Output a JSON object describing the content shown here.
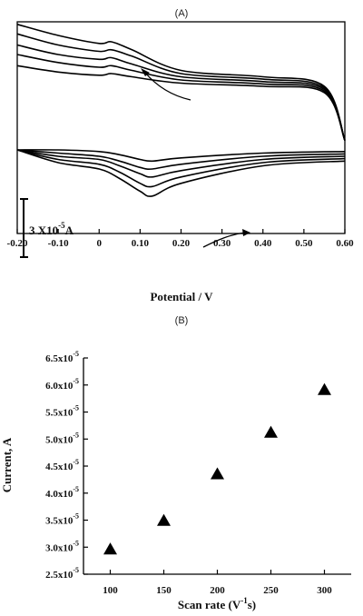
{
  "chart_data": [
    {
      "panel": "(A)",
      "type": "line",
      "xlabel": "Potential / V",
      "ylabel": "",
      "xlim": [
        -0.2,
        0.6
      ],
      "x_ticks": [
        "-0.20",
        "-0.10",
        "0",
        "0.10",
        "0.20",
        "0.30",
        "0.40",
        "0.50",
        "0.60"
      ],
      "grid": false,
      "scale_bar": {
        "label_main": "3 X10",
        "label_exp": "-5",
        "label_unit": "A",
        "value_A": 3e-05
      },
      "annotations": [
        "sweep arrow (anodic branch, leftward)",
        "sweep arrow (cathodic branch, rightward)"
      ],
      "series": [
        {
          "values_unit": "1e-5 A (relative)",
          "upper": [
            {
              "x": -0.2,
              "y": 7.9
            },
            {
              "x": -0.1,
              "y": 7.2
            },
            {
              "x": 0.0,
              "y": 6.7
            },
            {
              "x": 0.03,
              "y": 6.8
            },
            {
              "x": 0.08,
              "y": 6.3
            },
            {
              "x": 0.2,
              "y": 5.0
            },
            {
              "x": 0.4,
              "y": 4.6
            },
            {
              "x": 0.55,
              "y": 4.0
            },
            {
              "x": 0.6,
              "y": 0.6
            }
          ],
          "lower": [
            {
              "x": -0.2,
              "y": 0.0
            },
            {
              "x": -0.1,
              "y": -0.8
            },
            {
              "x": 0.0,
              "y": -1.2
            },
            {
              "x": 0.05,
              "y": -1.8
            },
            {
              "x": 0.1,
              "y": -2.6
            },
            {
              "x": 0.13,
              "y": -2.9
            },
            {
              "x": 0.2,
              "y": -2.1
            },
            {
              "x": 0.4,
              "y": -1.0
            },
            {
              "x": 0.6,
              "y": -0.7
            }
          ]
        },
        {
          "upper": [
            {
              "x": -0.2,
              "y": 7.3
            },
            {
              "x": -0.1,
              "y": 6.6
            },
            {
              "x": 0.0,
              "y": 6.2
            },
            {
              "x": 0.03,
              "y": 6.3
            },
            {
              "x": 0.08,
              "y": 5.9
            },
            {
              "x": 0.2,
              "y": 4.8
            },
            {
              "x": 0.4,
              "y": 4.45
            },
            {
              "x": 0.55,
              "y": 3.9
            },
            {
              "x": 0.6,
              "y": 0.6
            }
          ],
          "lower": [
            {
              "x": -0.2,
              "y": 0.0
            },
            {
              "x": -0.1,
              "y": -0.6
            },
            {
              "x": 0.0,
              "y": -0.9
            },
            {
              "x": 0.05,
              "y": -1.4
            },
            {
              "x": 0.1,
              "y": -2.1
            },
            {
              "x": 0.13,
              "y": -2.3
            },
            {
              "x": 0.2,
              "y": -1.7
            },
            {
              "x": 0.4,
              "y": -0.8
            },
            {
              "x": 0.6,
              "y": -0.55
            }
          ]
        },
        {
          "upper": [
            {
              "x": -0.2,
              "y": 6.6
            },
            {
              "x": -0.1,
              "y": 6.0
            },
            {
              "x": 0.0,
              "y": 5.7
            },
            {
              "x": 0.03,
              "y": 5.8
            },
            {
              "x": 0.08,
              "y": 5.4
            },
            {
              "x": 0.2,
              "y": 4.6
            },
            {
              "x": 0.4,
              "y": 4.3
            },
            {
              "x": 0.55,
              "y": 3.8
            },
            {
              "x": 0.6,
              "y": 0.6
            }
          ],
          "lower": [
            {
              "x": -0.2,
              "y": 0.0
            },
            {
              "x": -0.1,
              "y": -0.4
            },
            {
              "x": 0.0,
              "y": -0.6
            },
            {
              "x": 0.05,
              "y": -1.0
            },
            {
              "x": 0.1,
              "y": -1.5
            },
            {
              "x": 0.13,
              "y": -1.7
            },
            {
              "x": 0.2,
              "y": -1.3
            },
            {
              "x": 0.4,
              "y": -0.6
            },
            {
              "x": 0.6,
              "y": -0.4
            }
          ]
        },
        {
          "upper": [
            {
              "x": -0.2,
              "y": 6.0
            },
            {
              "x": -0.1,
              "y": 5.5
            },
            {
              "x": 0.0,
              "y": 5.2
            },
            {
              "x": 0.03,
              "y": 5.3
            },
            {
              "x": 0.08,
              "y": 5.0
            },
            {
              "x": 0.2,
              "y": 4.4
            },
            {
              "x": 0.4,
              "y": 4.15
            },
            {
              "x": 0.55,
              "y": 3.7
            },
            {
              "x": 0.6,
              "y": 0.6
            }
          ],
          "lower": [
            {
              "x": -0.2,
              "y": 0.0
            },
            {
              "x": -0.1,
              "y": -0.2
            },
            {
              "x": 0.0,
              "y": -0.4
            },
            {
              "x": 0.05,
              "y": -0.7
            },
            {
              "x": 0.1,
              "y": -1.1
            },
            {
              "x": 0.13,
              "y": -1.2
            },
            {
              "x": 0.2,
              "y": -0.9
            },
            {
              "x": 0.4,
              "y": -0.4
            },
            {
              "x": 0.6,
              "y": -0.25
            }
          ]
        },
        {
          "upper": [
            {
              "x": -0.2,
              "y": 5.3
            },
            {
              "x": -0.1,
              "y": 4.9
            },
            {
              "x": 0.0,
              "y": 4.7
            },
            {
              "x": 0.03,
              "y": 4.8
            },
            {
              "x": 0.08,
              "y": 4.6
            },
            {
              "x": 0.2,
              "y": 4.2
            },
            {
              "x": 0.4,
              "y": 4.0
            },
            {
              "x": 0.55,
              "y": 3.6
            },
            {
              "x": 0.6,
              "y": 0.6
            }
          ],
          "lower": [
            {
              "x": -0.2,
              "y": 0.0
            },
            {
              "x": -0.1,
              "y": 0.0
            },
            {
              "x": 0.0,
              "y": -0.1
            },
            {
              "x": 0.05,
              "y": -0.3
            },
            {
              "x": 0.1,
              "y": -0.6
            },
            {
              "x": 0.13,
              "y": -0.7
            },
            {
              "x": 0.2,
              "y": -0.5
            },
            {
              "x": 0.4,
              "y": -0.2
            },
            {
              "x": 0.6,
              "y": -0.1
            }
          ]
        }
      ]
    },
    {
      "panel": "(B)",
      "type": "scatter",
      "xlabel_main": "Scan  rate (V",
      "xlabel_sup": "-1",
      "xlabel_tail": "s)",
      "ylabel": "Current, A",
      "xlim": [
        75,
        325
      ],
      "ylim": [
        2.5e-05,
        6.5e-05
      ],
      "x_ticks": [
        {
          "v": 100,
          "t": "100"
        },
        {
          "v": 150,
          "t": "150"
        },
        {
          "v": 200,
          "t": "200"
        },
        {
          "v": 250,
          "t": "250"
        },
        {
          "v": 300,
          "t": "300"
        }
      ],
      "y_ticks": [
        {
          "v": 2.5e-05,
          "m": "2.5x10",
          "e": "-5"
        },
        {
          "v": 3e-05,
          "m": "3.0x10",
          "e": "-5"
        },
        {
          "v": 3.5e-05,
          "m": "3.5x10",
          "e": "-5"
        },
        {
          "v": 4e-05,
          "m": "4.0x10",
          "e": "-5"
        },
        {
          "v": 4.5e-05,
          "m": "4.5x10",
          "e": "-5"
        },
        {
          "v": 5e-05,
          "m": "5.0x10",
          "e": "-5"
        },
        {
          "v": 5.5e-05,
          "m": "5.5x10",
          "e": "-5"
        },
        {
          "v": 6e-05,
          "m": "6.0x10",
          "e": "-5"
        },
        {
          "v": 6.5e-05,
          "m": "6.5x10",
          "e": "-5"
        }
      ],
      "marker": "filled-triangle",
      "grid": false,
      "x": [
        100,
        150,
        200,
        250,
        300
      ],
      "y": [
        2.96e-05,
        3.49e-05,
        4.35e-05,
        5.12e-05,
        5.91e-05
      ]
    }
  ]
}
